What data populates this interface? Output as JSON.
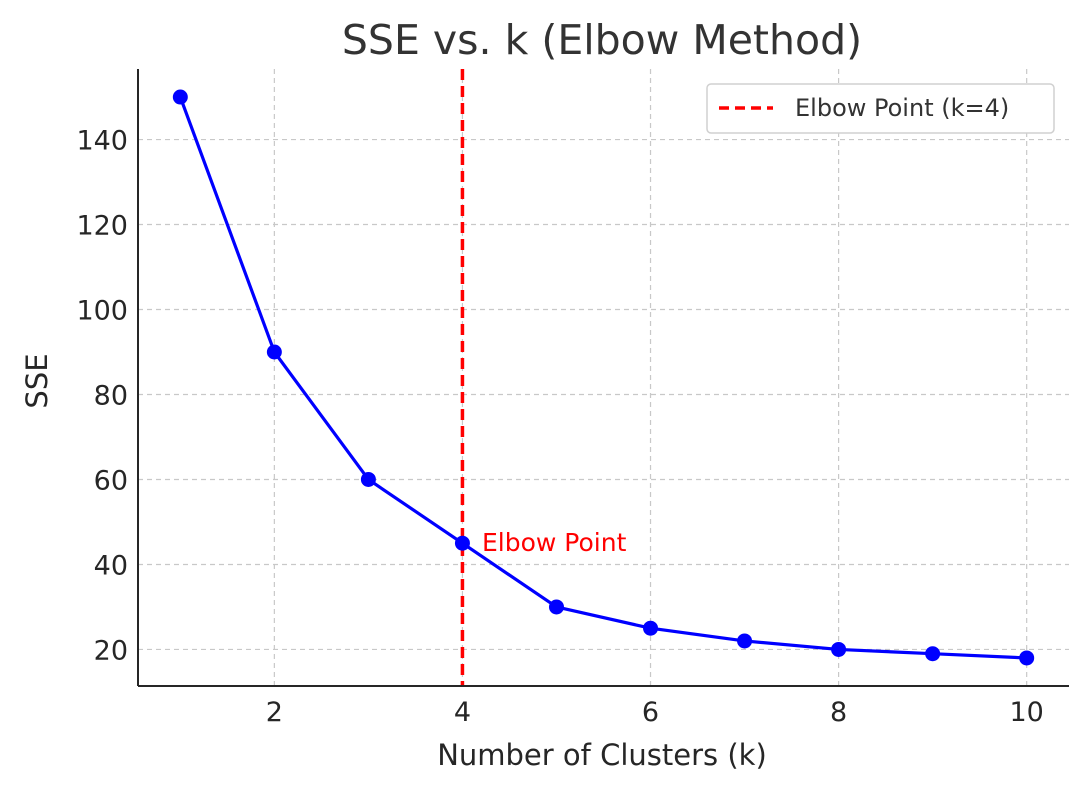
{
  "chart_data": {
    "type": "line",
    "title": "SSE vs. k (Elbow Method)",
    "xlabel": "Number of Clusters (k)",
    "ylabel": "SSE",
    "x": [
      1,
      2,
      3,
      4,
      5,
      6,
      7,
      8,
      9,
      10
    ],
    "series": [
      {
        "values": [
          150,
          90,
          60,
          45,
          30,
          25,
          22,
          20,
          19,
          18
        ],
        "color": "#0000ff",
        "marker": "circle"
      }
    ],
    "xlim": [
      0.55,
      10.45
    ],
    "ylim": [
      11.4,
      156.6
    ],
    "xticks": [
      2,
      4,
      6,
      8,
      10
    ],
    "yticks": [
      20,
      40,
      60,
      80,
      100,
      120,
      140
    ],
    "grid": true,
    "vline": {
      "x": 4,
      "color": "#ff0000",
      "style": "dashed",
      "label": "Elbow Point (k=4)"
    },
    "annotation": {
      "text": "Elbow Point",
      "x": 4,
      "y": 45,
      "color": "#ff0000"
    },
    "legend": {
      "position": "top-right",
      "entries": [
        "Elbow Point (k=4)"
      ]
    }
  }
}
